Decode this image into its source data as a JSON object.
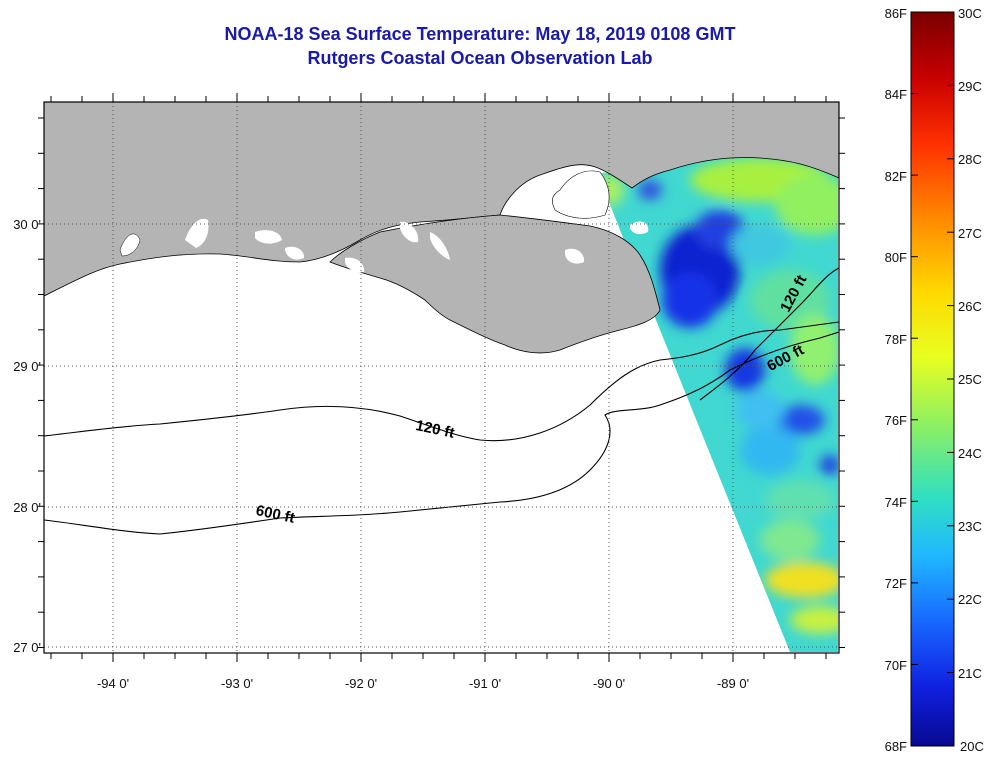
{
  "header": {
    "title_line1": "NOAA-18 Sea Surface Temperature:  May 18, 2019 0108 GMT",
    "title_line2": "Rutgers Coastal Ocean Observation Lab"
  },
  "map": {
    "longitude_labels": [
      "-94 0'",
      "-93 0'",
      "-92 0'",
      "-91 0'",
      "-90 0'",
      "-89 0'"
    ],
    "latitude_labels": [
      "30 0'",
      "29 0'",
      "28 0'",
      "27 0'"
    ],
    "contour_labels": {
      "shallow_west": "120 ft",
      "shallow_east": "120 ft",
      "deep_west": "600 ft",
      "deep_east": "600 ft"
    },
    "colors": {
      "land": "#b4b4b4",
      "ocean_no_data": "#ffffff",
      "grid": "#555555"
    }
  },
  "colorbar": {
    "fahrenheit_labels": [
      "86F",
      "84F",
      "82F",
      "80F",
      "78F",
      "76F",
      "74F",
      "72F",
      "70F",
      "68F"
    ],
    "celsius_labels": [
      "30C",
      "29C",
      "28C",
      "27C",
      "26C",
      "25C",
      "24C",
      "23C",
      "22C",
      "21C",
      "20C"
    ],
    "gradient_stops": [
      "#7a0000",
      "#c80000",
      "#ff3000",
      "#ff8800",
      "#ffd800",
      "#e8ff20",
      "#90f060",
      "#30e0c0",
      "#20b8ff",
      "#1868ff",
      "#1020e0",
      "#080890"
    ]
  }
}
